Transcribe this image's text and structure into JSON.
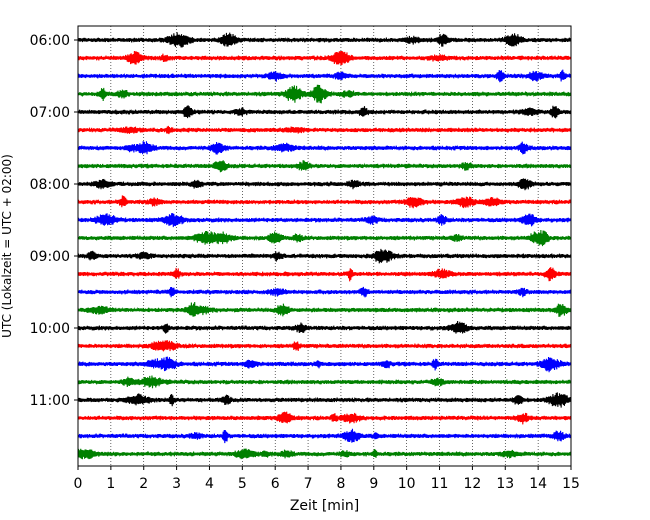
{
  "chart_data": {
    "type": "line",
    "xlabel": "Zeit  [min]",
    "ylabel": "UTC (Lokalzeit = UTC + 02:00)",
    "xlim": [
      0,
      15
    ],
    "x_ticks": [
      "0",
      "1",
      "2",
      "3",
      "4",
      "5",
      "6",
      "7",
      "8",
      "9",
      "10",
      "11",
      "12",
      "13",
      "14",
      "15"
    ],
    "y_ticks": [
      "06:00",
      "07:00",
      "08:00",
      "09:00",
      "10:00",
      "11:00"
    ],
    "grid": {
      "vertical_dotted": true
    },
    "trace_colors": [
      "#000000",
      "#ff0000",
      "#0000ff",
      "#008000"
    ],
    "trace_start_times": [
      "06:00",
      "06:15",
      "06:30",
      "06:45",
      "07:00",
      "07:15",
      "07:30",
      "07:45",
      "08:00",
      "08:15",
      "08:30",
      "08:45",
      "09:00",
      "09:15",
      "09:30",
      "09:45",
      "10:00",
      "10:15",
      "10:30",
      "10:45",
      "11:00",
      "11:15",
      "11:30",
      "11:45"
    ],
    "trace_minutes_per_line": 15,
    "trace_count": 24
  }
}
